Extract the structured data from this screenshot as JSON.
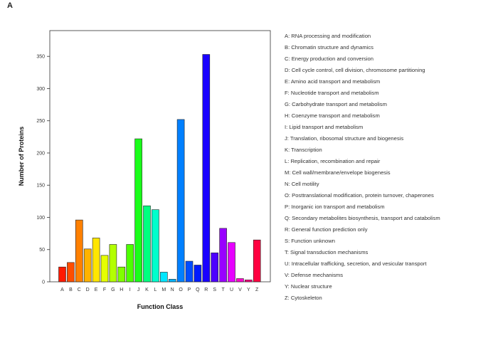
{
  "panel_label": "A",
  "chart_data": {
    "type": "bar",
    "xlabel": "Function Class",
    "ylabel": "Number of Proteins",
    "ylim": [
      0,
      390
    ],
    "yticks": [
      0,
      50,
      100,
      150,
      200,
      250,
      300,
      350
    ],
    "categories": [
      "A",
      "B",
      "C",
      "D",
      "E",
      "F",
      "G",
      "H",
      "I",
      "J",
      "K",
      "L",
      "M",
      "N",
      "O",
      "P",
      "Q",
      "R",
      "S",
      "T",
      "U",
      "V",
      "Y",
      "Z"
    ],
    "values": [
      23,
      30,
      96,
      51,
      68,
      41,
      58,
      23,
      58,
      222,
      118,
      112,
      15,
      4,
      252,
      32,
      26,
      353,
      45,
      83,
      61,
      5,
      3,
      65
    ],
    "colors": [
      "#ff1a00",
      "#ff4d00",
      "#ff8000",
      "#ffb300",
      "#ffe600",
      "#e6ff00",
      "#b3ff00",
      "#80ff00",
      "#4dff00",
      "#1aff1a",
      "#00ff80",
      "#00ffcc",
      "#00e6ff",
      "#00b3ff",
      "#0080ff",
      "#004dff",
      "#001aff",
      "#1a00ff",
      "#4d00ff",
      "#9900ff",
      "#e600ff",
      "#ff00cc",
      "#ff0080",
      "#ff0040"
    ],
    "grid": false,
    "legend": [
      "A: RNA processing and modification",
      "B: Chromatin structure and dynamics",
      "C: Energy production and conversion",
      "D: Cell cycle control, cell division, chromosome partitioning",
      "E: Amino acid transport and metabolism",
      "F: Nucleotide transport and metabolism",
      "G: Carbohydrate transport and metabolism",
      "H: Coenzyme transport and metabolism",
      "I: Lipid transport and metabolism",
      "J: Translation, ribosomal structure and biogenesis",
      "K: Transcription",
      "L: Replication, recombination and repair",
      "M: Cell wall/membrane/envelope biogenesis",
      "N: Cell motility",
      "O: Posttranslational modification, protein turnover, chaperones",
      "P: Inorganic ion transport and metabolism",
      "Q: Secondary metabolites biosynthesis, transport and catabolism",
      "R: General function prediction only",
      "S: Function unknown",
      "T: Signal transduction mechanisms",
      "U: Intracellular trafficking, secretion, and vesicular transport",
      "V: Defense mechanisms",
      "Y: Nuclear structure",
      "Z: Cytoskeleton"
    ]
  }
}
